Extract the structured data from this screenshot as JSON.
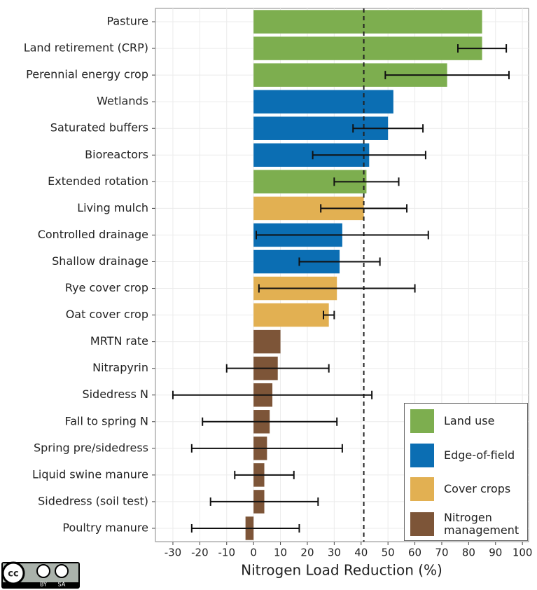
{
  "chart_data": {
    "type": "bar",
    "orientation": "horizontal",
    "x_label": "Nitrogen Load Reduction (%)",
    "categories": [
      "Pasture",
      "Land retirement (CRP)",
      "Perennial energy crop",
      "Wetlands",
      "Saturated buffers",
      "Bioreactors",
      "Extended rotation",
      "Living mulch",
      "Controlled drainage",
      "Shallow drainage",
      "Rye cover crop",
      "Oat cover crop",
      "MRTN rate",
      "Nitrapyrin",
      "Sidedress N",
      "Fall to spring N",
      "Spring pre/sidedress",
      "Liquid swine manure",
      "Sidedress (soil test)",
      "Poultry manure"
    ],
    "series": [
      {
        "name": "Land use",
        "color": "#7dae4f",
        "values": [
          85,
          85,
          72,
          null,
          null,
          null,
          42,
          null,
          null,
          null,
          null,
          null,
          null,
          null,
          null,
          null,
          null,
          null,
          null,
          null
        ],
        "error_low": [
          null,
          76,
          49,
          null,
          null,
          null,
          30,
          null,
          null,
          null,
          null,
          null,
          null,
          null,
          null,
          null,
          null,
          null,
          null,
          null
        ],
        "error_high": [
          null,
          94,
          95,
          null,
          null,
          null,
          54,
          null,
          null,
          null,
          null,
          null,
          null,
          null,
          null,
          null,
          null,
          null,
          null,
          null
        ]
      },
      {
        "name": "Edge-of-field",
        "color": "#0b6eb3",
        "values": [
          null,
          null,
          null,
          52,
          50,
          43,
          null,
          null,
          33,
          32,
          null,
          null,
          null,
          null,
          null,
          null,
          null,
          null,
          null,
          null
        ],
        "error_low": [
          null,
          null,
          null,
          null,
          37,
          22,
          null,
          null,
          1,
          17,
          null,
          null,
          null,
          null,
          null,
          null,
          null,
          null,
          null,
          null
        ],
        "error_high": [
          null,
          null,
          null,
          null,
          63,
          64,
          null,
          null,
          65,
          47,
          null,
          null,
          null,
          null,
          null,
          null,
          null,
          null,
          null,
          null
        ]
      },
      {
        "name": "Cover crops",
        "color": "#e2b052",
        "values": [
          null,
          null,
          null,
          null,
          null,
          null,
          null,
          41,
          null,
          null,
          31,
          28,
          null,
          null,
          null,
          null,
          null,
          null,
          null,
          null
        ],
        "error_low": [
          null,
          null,
          null,
          null,
          null,
          null,
          null,
          25,
          null,
          null,
          2,
          26,
          null,
          null,
          null,
          null,
          null,
          null,
          null,
          null
        ],
        "error_high": [
          null,
          null,
          null,
          null,
          null,
          null,
          null,
          57,
          null,
          null,
          60,
          30,
          null,
          null,
          null,
          null,
          null,
          null,
          null,
          null
        ]
      },
      {
        "name": "Nitrogen management",
        "color": "#7d5538",
        "values": [
          null,
          null,
          null,
          null,
          null,
          null,
          null,
          null,
          null,
          null,
          null,
          null,
          10,
          9,
          7,
          6,
          5,
          4,
          4,
          -3
        ],
        "error_low": [
          null,
          null,
          null,
          null,
          null,
          null,
          null,
          null,
          null,
          null,
          null,
          null,
          null,
          -10,
          -30,
          -19,
          -23,
          -7,
          -16,
          -23
        ],
        "error_high": [
          null,
          null,
          null,
          null,
          null,
          null,
          null,
          null,
          null,
          null,
          null,
          null,
          null,
          28,
          44,
          31,
          33,
          15,
          24,
          17
        ]
      }
    ],
    "reference_line": 41,
    "xlim": [
      -36.5,
      102.3
    ],
    "xticks": [
      -30,
      -20,
      -10,
      0,
      10,
      20,
      30,
      40,
      50,
      60,
      70,
      80,
      90,
      100
    ],
    "grid": true,
    "legend": "bottom-right"
  },
  "badge": {
    "cc": "cc",
    "by": "BY",
    "sa": "SA"
  }
}
